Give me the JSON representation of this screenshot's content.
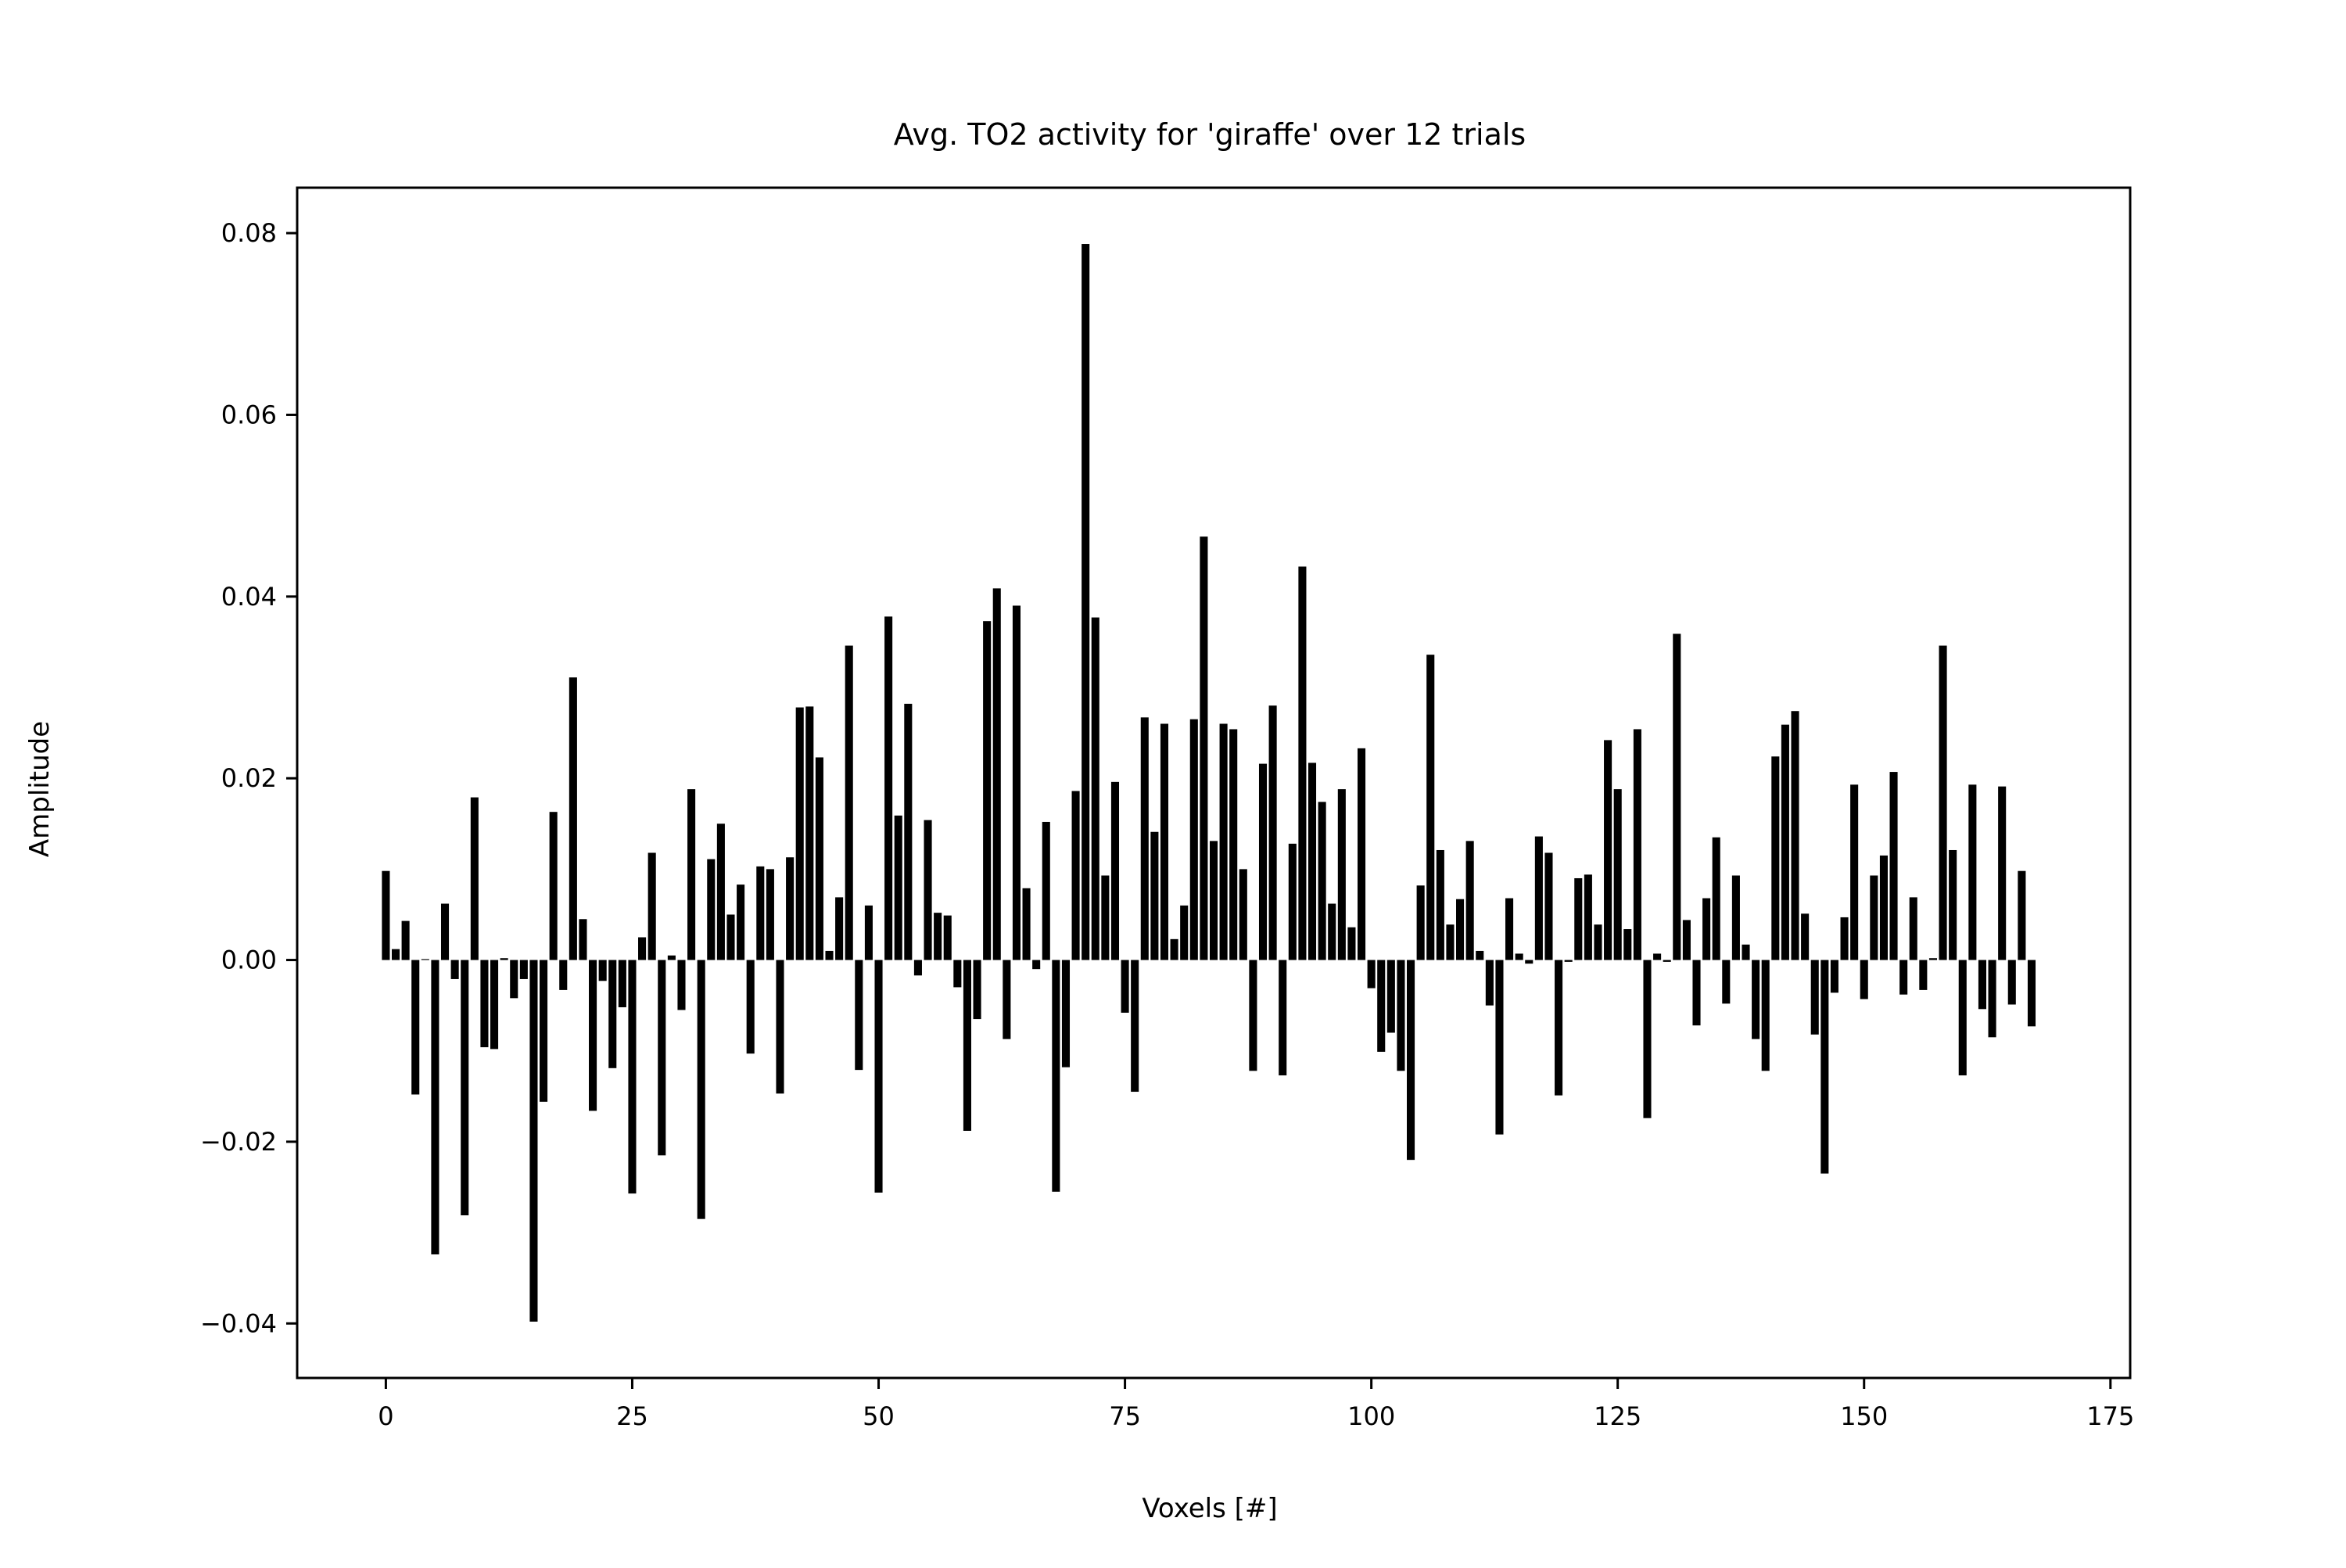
{
  "chart_data": {
    "type": "bar",
    "title": "Avg. TO2 activity for 'giraffe' over 12 trials",
    "xlabel": "Voxels [#]",
    "ylabel": "Amplitude",
    "xlim": [
      -9,
      177
    ],
    "ylim": [
      -0.046,
      0.085
    ],
    "xticks": [
      0,
      25,
      50,
      75,
      100,
      125,
      150,
      175
    ],
    "xtick_labels": [
      "0",
      "25",
      "50",
      "75",
      "100",
      "125",
      "150",
      "175"
    ],
    "yticks": [
      -0.04,
      -0.02,
      0.0,
      0.02,
      0.04,
      0.06,
      0.08
    ],
    "ytick_labels": [
      "−0.04",
      "−0.02",
      "0.00",
      "0.02",
      "0.04",
      "0.06",
      "0.08"
    ],
    "grid": false,
    "bar_color": "#000000",
    "x": [
      0,
      1,
      2,
      3,
      4,
      5,
      6,
      7,
      8,
      9,
      10,
      11,
      12,
      13,
      14,
      15,
      16,
      17,
      18,
      19,
      20,
      21,
      22,
      23,
      24,
      25,
      26,
      27,
      28,
      29,
      30,
      31,
      32,
      33,
      34,
      35,
      36,
      37,
      38,
      39,
      40,
      41,
      42,
      43,
      44,
      45,
      46,
      47,
      48,
      49,
      50,
      51,
      52,
      53,
      54,
      55,
      56,
      57,
      58,
      59,
      60,
      61,
      62,
      63,
      64,
      65,
      66,
      67,
      68,
      69,
      70,
      71,
      72,
      73,
      74,
      75,
      76,
      77,
      78,
      79,
      80,
      81,
      82,
      83,
      84,
      85,
      86,
      87,
      88,
      89,
      90,
      91,
      92,
      93,
      94,
      95,
      96,
      97,
      98,
      99,
      100,
      101,
      102,
      103,
      104,
      105,
      106,
      107,
      108,
      109,
      110,
      111,
      112,
      113,
      114,
      115,
      116,
      117,
      118,
      119,
      120,
      121,
      122,
      123,
      124,
      125,
      126,
      127,
      128,
      129,
      130,
      131,
      132,
      133,
      134,
      135,
      136,
      137,
      138,
      139,
      140,
      141,
      142,
      143,
      144,
      145,
      146,
      147,
      148,
      149,
      150,
      151,
      152,
      153,
      154,
      155,
      156,
      157,
      158,
      159,
      160,
      161,
      162,
      163,
      164,
      165,
      166,
      167
    ],
    "values": [
      0.0098,
      0.0012,
      0.0043,
      -0.0148,
      0.0001,
      -0.0324,
      0.0062,
      -0.0021,
      -0.0281,
      0.0179,
      -0.0096,
      -0.0098,
      0.0002,
      -0.0042,
      -0.0021,
      -0.0398,
      -0.0156,
      0.0163,
      -0.0033,
      0.0311,
      0.0045,
      -0.0166,
      -0.0023,
      -0.0119,
      -0.0052,
      -0.0257,
      0.0025,
      0.0118,
      -0.0215,
      0.0005,
      -0.0055,
      0.0188,
      -0.0285,
      0.0111,
      0.015,
      0.005,
      0.0083,
      -0.0103,
      0.0103,
      0.01,
      -0.0147,
      0.0113,
      0.0278,
      0.0279,
      0.0223,
      0.001,
      0.0069,
      0.0346,
      -0.0121,
      0.006,
      -0.0256,
      0.0378,
      0.0159,
      0.0282,
      -0.0017,
      0.0154,
      0.0052,
      0.0049,
      -0.003,
      -0.0188,
      -0.0065,
      0.0373,
      0.0409,
      -0.0087,
      0.039,
      0.0079,
      -0.001,
      0.0152,
      -0.0255,
      -0.0118,
      0.0186,
      0.0788,
      0.0377,
      0.0093,
      0.0196,
      -0.0058,
      -0.0145,
      0.0267,
      0.0141,
      0.026,
      0.0023,
      0.006,
      0.0265,
      0.0466,
      0.0131,
      0.026,
      0.0254,
      0.01,
      -0.0122,
      0.0216,
      0.028,
      -0.0127,
      0.0128,
      0.0433,
      0.0217,
      0.0174,
      0.0062,
      0.0188,
      0.0036,
      0.0233,
      -0.0031,
      -0.0101,
      -0.008,
      -0.0122,
      -0.022,
      0.0082,
      0.0336,
      0.0121,
      0.0039,
      0.0067,
      0.0131,
      0.001,
      -0.005,
      -0.0192,
      0.0068,
      0.0007,
      -0.0004,
      0.0136,
      0.0118,
      -0.0149,
      -0.0002,
      0.009,
      0.0094,
      0.0039,
      0.0242,
      0.0188,
      0.0034,
      0.0254,
      -0.0174,
      0.0007,
      -0.0002,
      0.0359,
      0.0044,
      -0.0072,
      0.0068,
      0.0135,
      -0.0048,
      0.0093,
      0.0017,
      -0.0087,
      -0.0122,
      0.0224,
      0.0259,
      0.0274,
      0.0051,
      -0.0082,
      -0.0235,
      -0.0036,
      0.0047,
      0.0193,
      -0.0043,
      0.0093,
      0.0115,
      0.0207,
      -0.0038,
      0.0069,
      -0.0033,
      0.0002,
      0.0346,
      0.0121,
      -0.0127,
      0.0193,
      -0.0054,
      -0.0085,
      0.0191,
      -0.0049,
      0.0098,
      -0.0073
    ]
  }
}
